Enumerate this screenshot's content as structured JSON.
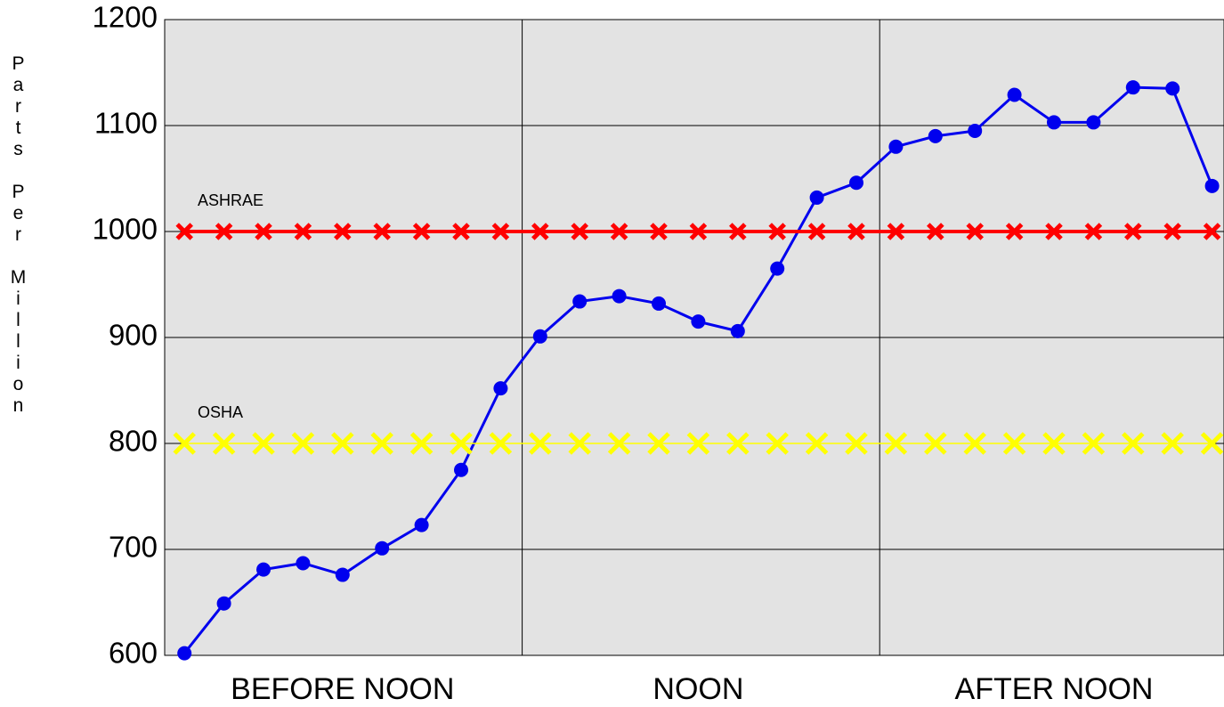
{
  "chart_data": {
    "type": "line",
    "y_label": "Parts Per Million",
    "categories": [
      null,
      null,
      null,
      null,
      "BEFORE NOON",
      null,
      null,
      null,
      null,
      null,
      null,
      null,
      null,
      "NOON",
      null,
      null,
      null,
      null,
      null,
      null,
      null,
      null,
      "AFTER NOON",
      null,
      null,
      null,
      null
    ],
    "series": [
      {
        "color": "#0000ee",
        "marker": "circle",
        "values": [
          602,
          649,
          681,
          687,
          676,
          701,
          723,
          775,
          852,
          901,
          934,
          939,
          932,
          915,
          906,
          965,
          1032,
          1046,
          1080,
          1090,
          1095,
          1129,
          1103,
          1103,
          1136,
          1135,
          1043
        ]
      },
      {
        "name": "ASHRAE",
        "color": "#ff0000",
        "marker": "x",
        "values": [
          1000,
          1000,
          1000,
          1000,
          1000,
          1000,
          1000,
          1000,
          1000,
          1000,
          1000,
          1000,
          1000,
          1000,
          1000,
          1000,
          1000,
          1000,
          1000,
          1000,
          1000,
          1000,
          1000,
          1000,
          1000,
          1000,
          1000
        ]
      },
      {
        "name": "OSHA",
        "color": "#ffff00",
        "marker": "x",
        "values": [
          800,
          800,
          800,
          800,
          800,
          800,
          800,
          800,
          800,
          800,
          800,
          800,
          800,
          800,
          800,
          800,
          800,
          800,
          800,
          800,
          800,
          800,
          800,
          800,
          800,
          800,
          800
        ]
      }
    ],
    "ylim": [
      600,
      1200
    ],
    "yticks": [
      600,
      700,
      800,
      900,
      1000,
      1100,
      1200
    ],
    "grid": true
  }
}
